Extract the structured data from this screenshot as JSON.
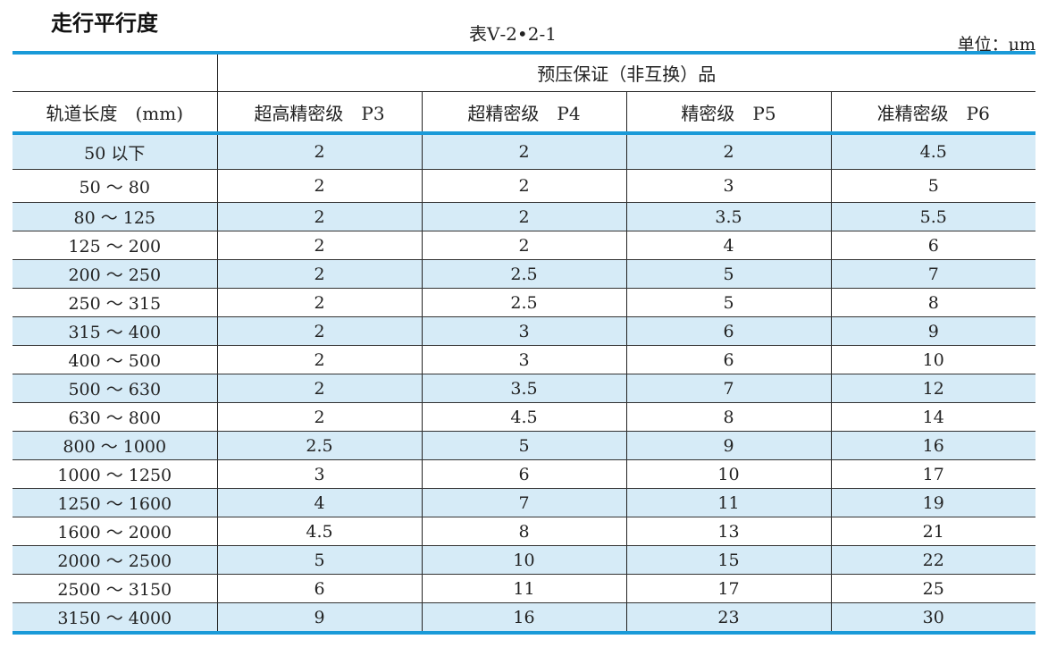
{
  "page_title": "走行平行度",
  "table_label": "表Ⅴ-2•2-1",
  "unit_label": "单位：μm",
  "table": {
    "group_header": "预压保证（非互换）品",
    "col_headers": [
      "轨道长度　(mm)",
      "超高精密级　P3",
      "超精密级　P4",
      "精密级　P5",
      "准精密级　P6"
    ],
    "rows": [
      [
        "50 以下",
        "2",
        "2",
        "2",
        "4.5"
      ],
      [
        "50 ～ 80",
        "2",
        "2",
        "3",
        "5"
      ],
      [
        "80 ～ 125",
        "2",
        "2",
        "3.5",
        "5.5"
      ],
      [
        "125 ～ 200",
        "2",
        "2",
        "4",
        "6"
      ],
      [
        "200 ～ 250",
        "2",
        "2.5",
        "5",
        "7"
      ],
      [
        "250 ～ 315",
        "2",
        "2.5",
        "5",
        "8"
      ],
      [
        "315 ～ 400",
        "2",
        "3",
        "6",
        "9"
      ],
      [
        "400 ～ 500",
        "2",
        "3",
        "6",
        "10"
      ],
      [
        "500 ～ 630",
        "2",
        "3.5",
        "7",
        "12"
      ],
      [
        "630 ～ 800",
        "2",
        "4.5",
        "8",
        "14"
      ],
      [
        "800 ～ 1000",
        "2.5",
        "5",
        "9",
        "16"
      ],
      [
        "1000 ～ 1250",
        "3",
        "6",
        "10",
        "17"
      ],
      [
        "1250 ～ 1600",
        "4",
        "7",
        "11",
        "19"
      ],
      [
        "1600 ～ 2000",
        "4.5",
        "8",
        "13",
        "21"
      ],
      [
        "2000 ～ 2500",
        "5",
        "10",
        "15",
        "22"
      ],
      [
        "2500 ～ 3150",
        "6",
        "11",
        "17",
        "25"
      ],
      [
        "3150 ～ 4000",
        "9",
        "16",
        "23",
        "30"
      ]
    ]
  }
}
